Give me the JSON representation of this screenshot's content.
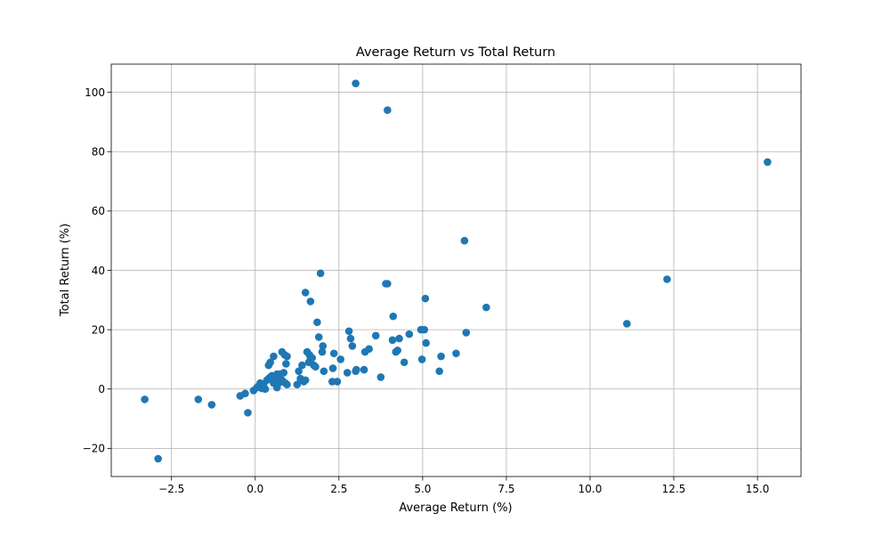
{
  "colors": {
    "marker": "#1f77b4",
    "grid": "#b0b0b0",
    "axis": "#000000",
    "background": "#ffffff"
  },
  "chart_data": {
    "type": "scatter",
    "title": "Average Return vs Total Return",
    "xlabel": "Average Return (%)",
    "ylabel": "Total Return (%)",
    "xlim": [
      -4.3,
      16.3
    ],
    "ylim": [
      -29.5,
      109.5
    ],
    "xticks": [
      -2.5,
      0.0,
      2.5,
      5.0,
      7.5,
      10.0,
      12.5,
      15.0
    ],
    "xtick_labels": [
      "−2.5",
      "0.0",
      "2.5",
      "5.0",
      "7.5",
      "10.0",
      "12.5",
      "15.0"
    ],
    "yticks": [
      -20,
      0,
      20,
      40,
      60,
      80,
      100
    ],
    "ytick_labels": [
      "−20",
      "0",
      "20",
      "40",
      "60",
      "80",
      "100"
    ],
    "grid": true,
    "legend": false,
    "series": [
      {
        "x": [
          -3.3,
          -2.9,
          -1.7,
          -1.3,
          -0.45,
          -0.3,
          -0.22,
          -0.05,
          0.05,
          0.1,
          0.15,
          0.2,
          0.25,
          0.3,
          0.35,
          0.4,
          0.45,
          0.5,
          0.55,
          0.6,
          0.65,
          0.7,
          0.72,
          0.75,
          0.8,
          0.85,
          0.9,
          0.95,
          0.4,
          0.45,
          0.55,
          0.6,
          0.65,
          0.7,
          0.8,
          0.88,
          0.92,
          0.95,
          1.25,
          1.3,
          1.35,
          1.4,
          1.45,
          1.5,
          1.55,
          1.6,
          1.62,
          1.65,
          1.7,
          1.75,
          1.8,
          1.85,
          1.9,
          1.95,
          2.0,
          2.02,
          2.05,
          2.3,
          2.32,
          2.35,
          2.45,
          2.55,
          2.75,
          2.8,
          2.85,
          2.9,
          3.0,
          3.02,
          3.25,
          3.28,
          3.4,
          3.6,
          3.75,
          3.9,
          3.95,
          4.1,
          4.12,
          4.2,
          4.25,
          4.3,
          4.45,
          4.6,
          4.95,
          4.98,
          5.05,
          5.08,
          5.1,
          5.5,
          5.55,
          6.0,
          6.25,
          6.3,
          6.9,
          11.1,
          12.3,
          15.3,
          1.5,
          1.65,
          3.95,
          3.0
        ],
        "y": [
          -3.5,
          -23.5,
          -3.5,
          -5.3,
          -2.3,
          -1.5,
          -8.0,
          -0.5,
          0.5,
          1.0,
          2.0,
          0.2,
          1.5,
          0.0,
          3.0,
          3.5,
          4.0,
          4.5,
          2.0,
          3.5,
          0.5,
          4.0,
          5.0,
          2.5,
          3.0,
          5.5,
          2.0,
          1.5,
          8.0,
          9.0,
          11.0,
          3.0,
          5.0,
          2.0,
          12.5,
          11.5,
          8.5,
          11.0,
          1.5,
          6.0,
          3.5,
          8.0,
          2.5,
          3.0,
          12.5,
          9.0,
          11.5,
          10.0,
          10.5,
          8.0,
          7.5,
          22.5,
          17.5,
          39.0,
          12.5,
          14.5,
          6.0,
          2.5,
          7.0,
          12.0,
          2.5,
          10.0,
          5.5,
          19.5,
          17.0,
          14.5,
          6.0,
          6.5,
          6.5,
          12.5,
          13.5,
          18.0,
          4.0,
          35.5,
          94.0,
          16.5,
          24.5,
          12.5,
          13.0,
          17.0,
          9.0,
          18.5,
          20.0,
          10.0,
          20.0,
          30.5,
          15.5,
          6.0,
          11.0,
          12.0,
          50.0,
          19.0,
          27.5,
          22.0,
          37.0,
          76.5,
          32.5,
          29.5,
          35.5,
          103.0
        ]
      }
    ]
  }
}
